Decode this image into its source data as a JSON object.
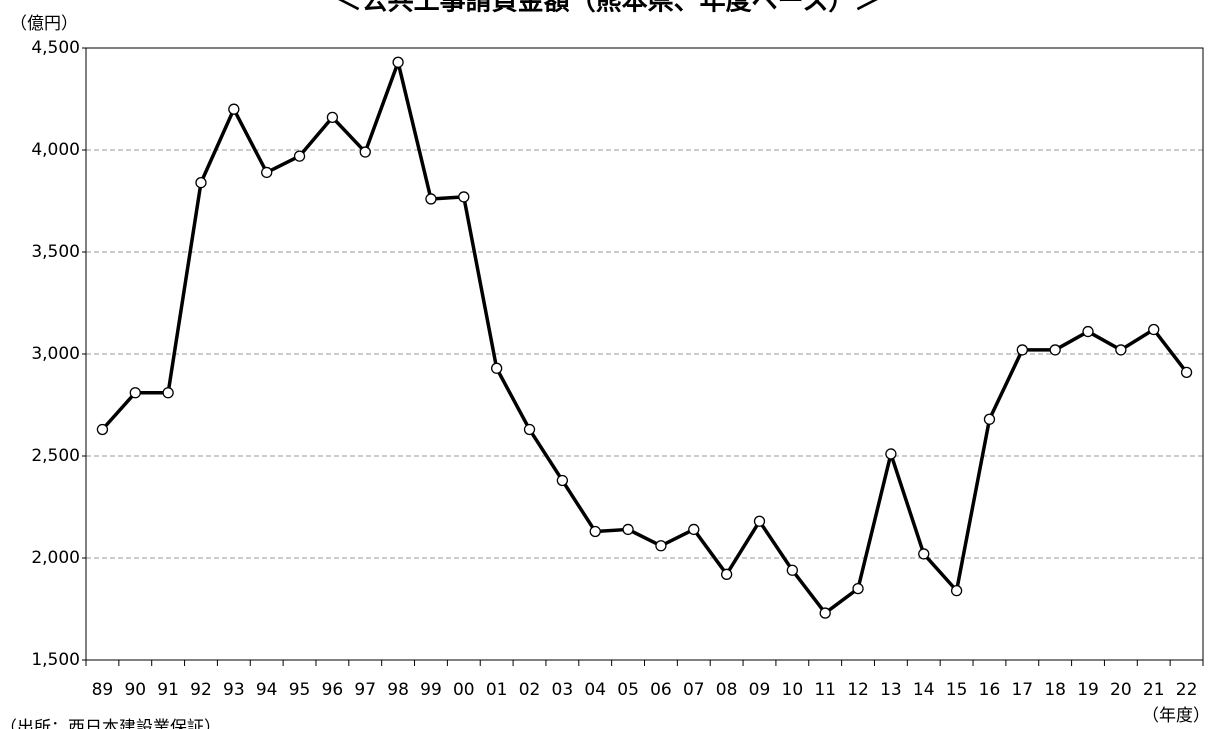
{
  "chart_data": {
    "type": "line",
    "title": "＜公共工事請負金額（熊本県、年度ベース）＞",
    "y_label": "（億円）",
    "x_label": "（年度）",
    "source": "（出所：西日本建設業保証）",
    "categories": [
      "89",
      "90",
      "91",
      "92",
      "93",
      "94",
      "95",
      "96",
      "97",
      "98",
      "99",
      "00",
      "01",
      "02",
      "03",
      "04",
      "05",
      "06",
      "07",
      "08",
      "09",
      "10",
      "11",
      "12",
      "13",
      "14",
      "15",
      "16",
      "17",
      "18",
      "19",
      "20",
      "21",
      "22"
    ],
    "series": [
      {
        "name": "公共工事請負金額",
        "color": "#000000",
        "values": [
          2630,
          2810,
          2810,
          3840,
          4200,
          3890,
          3970,
          4160,
          3990,
          4430,
          3760,
          3770,
          2930,
          2630,
          2380,
          2130,
          2140,
          2060,
          2140,
          1920,
          2180,
          1940,
          1730,
          1850,
          2510,
          2020,
          1840,
          2680,
          3020,
          3020,
          3110,
          3020,
          3120,
          2910
        ]
      }
    ],
    "ylim": [
      1500,
      4500
    ],
    "yticks": [
      {
        "value": 1500,
        "label": "1,500"
      },
      {
        "value": 2000,
        "label": "2,000"
      },
      {
        "value": 2500,
        "label": "2,500"
      },
      {
        "value": 3000,
        "label": "3,000"
      },
      {
        "value": 3500,
        "label": "3,500"
      },
      {
        "value": 4000,
        "label": "4,000"
      },
      {
        "value": 4500,
        "label": "4,500"
      }
    ],
    "grid": true
  }
}
